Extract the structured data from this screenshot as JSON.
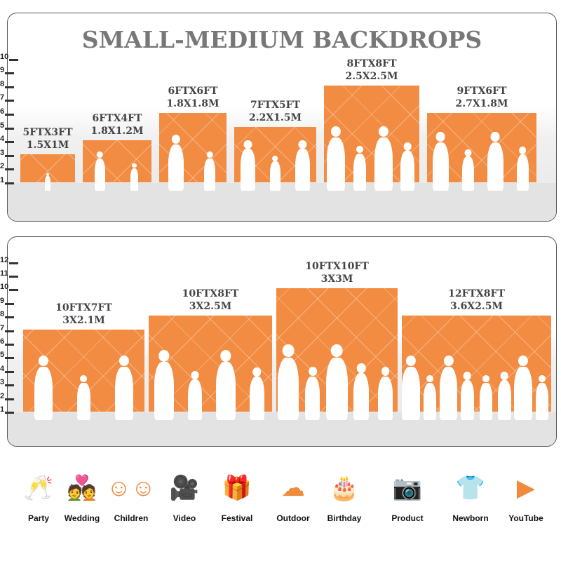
{
  "title": "SMALL-MEDIUM BACKDROPS",
  "accent_color": "#f28c42",
  "panels": [
    {
      "axis": [
        "1",
        "2",
        "3",
        "4",
        "5",
        "6",
        "7",
        "8",
        "9",
        "10"
      ],
      "items": [
        {
          "size_ft": "5FTX3FT",
          "size_m": "1.5X1M",
          "width_ft": 5,
          "height_ft": 3,
          "people": 1
        },
        {
          "size_ft": "6FTX4FT",
          "size_m": "1.8X1.2M",
          "width_ft": 6,
          "height_ft": 4,
          "people": 2
        },
        {
          "size_ft": "6FTX6FT",
          "size_m": "1.8X1.8M",
          "width_ft": 6,
          "height_ft": 6,
          "people": 2
        },
        {
          "size_ft": "7FTX5FT",
          "size_m": "2.2X1.5M",
          "width_ft": 7,
          "height_ft": 5,
          "people": 3
        },
        {
          "size_ft": "8FTX8FT",
          "size_m": "2.5X2.5M",
          "width_ft": 8,
          "height_ft": 8,
          "people": 4
        },
        {
          "size_ft": "9FTX6FT",
          "size_m": "2.7X1.8M",
          "width_ft": 9,
          "height_ft": 6,
          "people": 4
        }
      ]
    },
    {
      "axis": [
        "1",
        "2",
        "3",
        "4",
        "5",
        "6",
        "7",
        "8",
        "9",
        "10",
        "11",
        "12"
      ],
      "items": [
        {
          "size_ft": "10FTX7FT",
          "size_m": "3X2.1M",
          "width_ft": 10,
          "height_ft": 7,
          "people": 3
        },
        {
          "size_ft": "10FTX8FT",
          "size_m": "3X2.5M",
          "width_ft": 10,
          "height_ft": 8,
          "people": 4
        },
        {
          "size_ft": "10FTX10FT",
          "size_m": "3X3M",
          "width_ft": 10,
          "height_ft": 10,
          "people": 5
        },
        {
          "size_ft": "12FTX8FT",
          "size_m": "3.6X2.5M",
          "width_ft": 12,
          "height_ft": 8,
          "people": 8
        }
      ]
    }
  ],
  "uses": [
    {
      "label": "Party",
      "icon": "champagne-glasses-icon",
      "glyph": "🥂"
    },
    {
      "label": "Wedding",
      "icon": "wedding-couple-icon",
      "glyph": "💑"
    },
    {
      "label": "Children",
      "icon": "children-faces-icon",
      "glyph": "☺☺"
    },
    {
      "label": "Video",
      "icon": "film-camera-icon",
      "glyph": "🎥"
    },
    {
      "label": "Festival",
      "icon": "gift-box-icon",
      "glyph": "🎁"
    },
    {
      "label": "Outdoor",
      "icon": "cloud-icon",
      "glyph": "☁"
    },
    {
      "label": "Birthday",
      "icon": "birthday-cake-icon",
      "glyph": "🎂"
    },
    {
      "label": "Product",
      "icon": "camera-icon",
      "glyph": "📷"
    },
    {
      "label": "Newborn",
      "icon": "baby-onesie-icon",
      "glyph": "👕"
    },
    {
      "label": "YouTube",
      "icon": "play-button-icon",
      "glyph": "▶"
    }
  ]
}
